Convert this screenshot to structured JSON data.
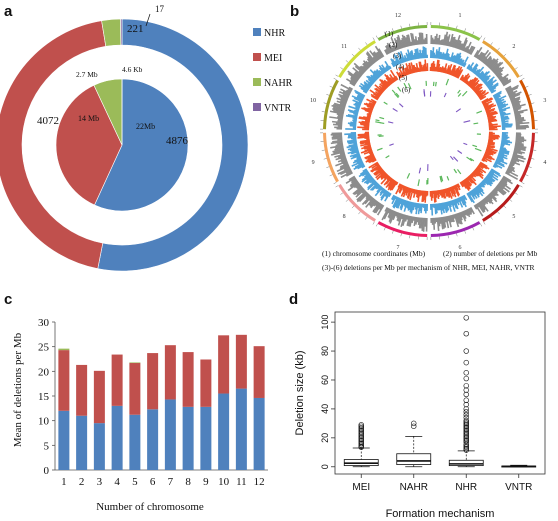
{
  "panels": {
    "a": "a",
    "b": "b",
    "c": "c",
    "d": "d"
  },
  "panel_a": {
    "outer_labels": [
      "4876",
      "4072",
      "221",
      "17"
    ],
    "inner_labels": [
      "22Mb",
      "14 Mb",
      "2.7 Mb",
      "4.6 Kb"
    ],
    "legend": [
      "NHR",
      "MEI",
      "NAHR",
      "VNTR"
    ],
    "colors": [
      "#4F81BD",
      "#C0504D",
      "#9BBB59",
      "#8064A2"
    ]
  },
  "panel_b": {
    "track_labels": [
      "(1)",
      "(2)",
      "(3)",
      "(4)",
      "(5)",
      "(6)"
    ],
    "chromosome_labels": [
      "1",
      "2",
      "3",
      "4",
      "5",
      "6",
      "7",
      "8",
      "9",
      "10",
      "11",
      "12"
    ],
    "caption_line1_left": "(1) chromosome coordinates (Mb)",
    "caption_line1_right": "(2) number of deletions per Mb",
    "caption_line2": "(3)-(6) deletions per Mb per mechanism of NHR, MEI, NAHR, VNTR"
  },
  "chart_data": [
    {
      "type": "pie",
      "panel": "a",
      "ring": "outer (number of deletions)",
      "labels": [
        "NHR",
        "MEI",
        "NAHR",
        "VNTR"
      ],
      "values": [
        4876,
        4072,
        221,
        17
      ],
      "colors": [
        "#4F81BD",
        "#C0504D",
        "#9BBB59",
        "#8064A2"
      ]
    },
    {
      "type": "pie",
      "panel": "a",
      "ring": "inner (deleted size)",
      "labels": [
        "NHR",
        "MEI",
        "NAHR",
        "VNTR"
      ],
      "values": [
        22,
        14,
        2.7,
        0.0046
      ],
      "value_labels": [
        "22Mb",
        "14 Mb",
        "2.7 Mb",
        "4.6 Kb"
      ],
      "colors": [
        "#4F81BD",
        "#C0504D",
        "#9BBB59",
        "#8064A2"
      ]
    },
    {
      "type": "bar",
      "panel": "c",
      "stacked": true,
      "categories": [
        "1",
        "2",
        "3",
        "4",
        "5",
        "6",
        "7",
        "8",
        "9",
        "10",
        "11",
        "12"
      ],
      "series": [
        {
          "values": [
            12.0,
            11.0,
            9.5,
            13.0,
            11.2,
            12.3,
            14.3,
            12.8,
            12.8,
            15.5,
            16.5,
            14.6
          ],
          "color": "#4F81BD"
        },
        {
          "values": [
            12.3,
            10.3,
            10.6,
            10.4,
            10.5,
            11.4,
            11.0,
            11.1,
            9.6,
            11.8,
            10.9,
            10.5
          ],
          "color": "#C0504D"
        },
        {
          "values": [
            0.3,
            0,
            0,
            0,
            0.1,
            0,
            0,
            0,
            0,
            0,
            0,
            0
          ],
          "color": "#9BBB59"
        }
      ],
      "xlabel": "Number of chromosome",
      "ylabel": "Mean of deletions per Mb",
      "ylim": [
        0,
        30
      ],
      "yticks": [
        "0",
        "5",
        "10",
        "15",
        "20",
        "25",
        "30"
      ]
    },
    {
      "type": "box",
      "panel": "d",
      "categories": [
        "MEI",
        "NAHR",
        "NHR",
        "VNTR"
      ],
      "boxes": [
        {
          "whisker_low": 0,
          "q1": 0.8,
          "median": 2.5,
          "q3": 5,
          "whisker_high": 13
        },
        {
          "whisker_low": 0,
          "q1": 1.5,
          "median": 4,
          "q3": 9,
          "whisker_high": 21
        },
        {
          "whisker_low": 0,
          "q1": 0.8,
          "median": 2,
          "q3": 4.5,
          "whisker_high": 11
        },
        {
          "whisker_low": 0,
          "q1": 0.1,
          "median": 0.3,
          "q3": 0.5,
          "whisker_high": 1
        }
      ],
      "outliers": [
        [
          13.5,
          14,
          15,
          16,
          17,
          18,
          19,
          20,
          21,
          22,
          23,
          24,
          25,
          26,
          27,
          28,
          29
        ],
        [
          28,
          30
        ],
        [
          11.5,
          12.5,
          13.5,
          14.5,
          15.5,
          17,
          18,
          19,
          20,
          21,
          22,
          23,
          24,
          25,
          26,
          27,
          28,
          29,
          30,
          31,
          32,
          34,
          36,
          38,
          40,
          43,
          46,
          50,
          53,
          56,
          61,
          65,
          72,
          80,
          92,
          103
        ],
        []
      ],
      "xlabel": "Formation mechanism",
      "ylabel": "Deletion size (kb)",
      "ylim": [
        0,
        105
      ],
      "yticks": [
        "0",
        "20",
        "40",
        "60",
        "80",
        "100"
      ]
    }
  ]
}
